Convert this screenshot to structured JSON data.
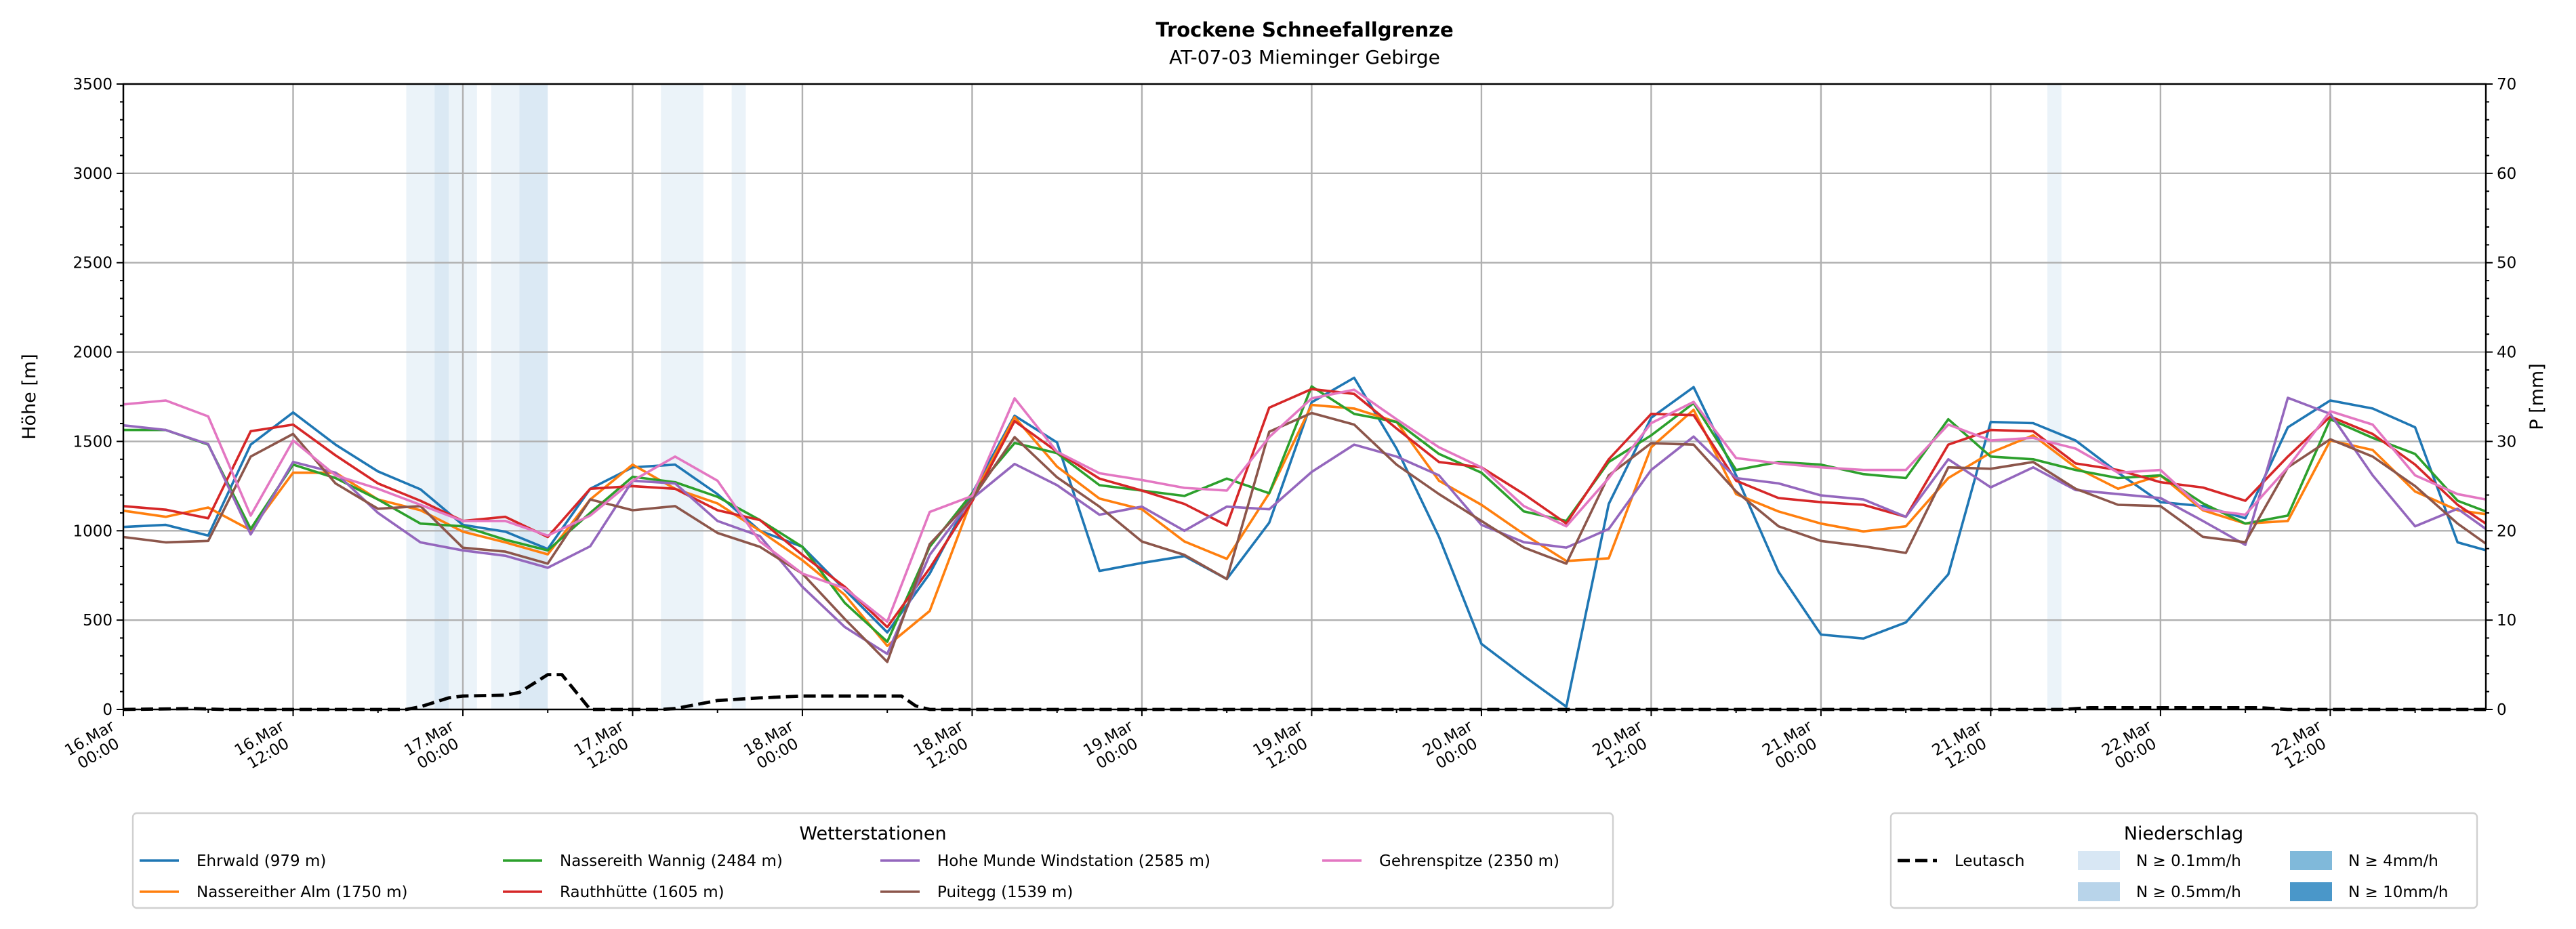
{
  "chart_data": {
    "type": "line",
    "title": "Trockene Schneefallgrenze",
    "subtitle": "AT-07-03 Mieminger Gebirge",
    "ylabel": "Höhe [m]",
    "ylabel_right": "P [mm]",
    "ylim": [
      0,
      3500
    ],
    "ylim_right": [
      0,
      70
    ],
    "y_ticks": [
      "0",
      "500",
      "1000",
      "1500",
      "2000",
      "2500",
      "3000",
      "3500"
    ],
    "y_ticks_right": [
      "0",
      "10",
      "20",
      "30",
      "40",
      "50",
      "60",
      "70"
    ],
    "grid": true,
    "x_unit": "hours since 16.Mar 00:00",
    "xlim": [
      0,
      167
    ],
    "x_tick_labels": [
      [
        "16.Mar",
        "00:00"
      ],
      [
        "16.Mar",
        "12:00"
      ],
      [
        "17.Mar",
        "00:00"
      ],
      [
        "17.Mar",
        "12:00"
      ],
      [
        "18.Mar",
        "00:00"
      ],
      [
        "18.Mar",
        "12:00"
      ],
      [
        "19.Mar",
        "00:00"
      ],
      [
        "19.Mar",
        "12:00"
      ],
      [
        "20.Mar",
        "00:00"
      ],
      [
        "20.Mar",
        "12:00"
      ],
      [
        "21.Mar",
        "00:00"
      ],
      [
        "21.Mar",
        "12:00"
      ],
      [
        "22.Mar",
        "00:00"
      ],
      [
        "22.Mar",
        "12:00"
      ]
    ],
    "x": [
      0,
      3,
      6,
      9,
      12,
      15,
      18,
      21,
      24,
      27,
      30,
      33,
      36,
      39,
      42,
      45,
      48,
      51,
      54,
      57,
      60,
      63,
      66,
      69,
      72,
      75,
      78,
      81,
      84,
      87,
      90,
      93,
      96,
      99,
      102,
      105,
      108,
      111,
      114,
      117,
      120,
      123,
      126,
      129,
      132,
      135,
      138,
      141,
      144,
      147,
      150,
      153,
      156,
      159,
      162,
      165,
      167
    ],
    "series": [
      {
        "name": "Ehrwald (979 m)",
        "color": "#1f77b4",
        "values": [
          1021,
          1033,
          973,
          1482,
          1662,
          1482,
          1332,
          1232,
          1033,
          995,
          898,
          1235,
          1355,
          1370,
          1205,
          1000,
          910,
          670,
          431,
          760,
          1210,
          1644,
          1494,
          775,
          820,
          858,
          730,
          1045,
          1719,
          1856,
          1460,
          966,
          367,
          187,
          15,
          1150,
          1632,
          1804,
          1310,
          771,
          419,
          397,
          487,
          756,
          1609,
          1602,
          1505,
          1325,
          1160,
          1138,
          1070,
          1579,
          1729,
          1684,
          1579,
          935,
          891
        ]
      },
      {
        "name": "Nassereither Alm (1750 m)",
        "color": "#ff7f0e",
        "values": [
          1112,
          1078,
          1130,
          1003,
          1325,
          1325,
          1175,
          1115,
          995,
          935,
          868,
          1175,
          1370,
          1235,
          1153,
          1000,
          835,
          641,
          356,
          551,
          1180,
          1636,
          1359,
          1180,
          1120,
          940,
          843,
          1210,
          1704,
          1684,
          1609,
          1280,
          1145,
          981,
          831,
          846,
          1467,
          1677,
          1205,
          1108,
          1040,
          996,
          1025,
          1295,
          1437,
          1534,
          1355,
          1235,
          1310,
          1115,
          1040,
          1055,
          1505,
          1452,
          1220,
          1115,
          1093
        ]
      },
      {
        "name": "Nassereith Wannig (2484 m)",
        "color": "#2ca02c",
        "values": [
          1564,
          1564,
          1482,
          1010,
          1370,
          1295,
          1175,
          1040,
          1025,
          950,
          890,
          1100,
          1302,
          1272,
          1190,
          1060,
          910,
          596,
          379,
          910,
          1210,
          1491,
          1434,
          1255,
          1225,
          1195,
          1292,
          1210,
          1808,
          1654,
          1609,
          1430,
          1325,
          1108,
          1055,
          1385,
          1534,
          1714,
          1340,
          1385,
          1370,
          1317,
          1295,
          1624,
          1415,
          1400,
          1340,
          1295,
          1310,
          1153,
          1040,
          1085,
          1624,
          1520,
          1430,
          1168,
          1108
        ]
      },
      {
        "name": "Rauthhütte (1605 m)",
        "color": "#d62728",
        "values": [
          1138,
          1118,
          1070,
          1557,
          1594,
          1422,
          1265,
          1168,
          1055,
          1078,
          965,
          1235,
          1250,
          1235,
          1115,
          1060,
          865,
          686,
          461,
          790,
          1165,
          1614,
          1442,
          1292,
          1225,
          1150,
          1030,
          1689,
          1793,
          1766,
          1572,
          1385,
          1355,
          1205,
          1040,
          1400,
          1654,
          1647,
          1280,
          1183,
          1160,
          1145,
          1078,
          1482,
          1564,
          1557,
          1377,
          1340,
          1272,
          1242,
          1168,
          1415,
          1639,
          1542,
          1370,
          1145,
          1040
        ]
      },
      {
        "name": "Hohe Munde Windstation (2585 m)",
        "color": "#9467bd",
        "values": [
          1590,
          1564,
          1485,
          980,
          1385,
          1325,
          1100,
          935,
          890,
          860,
          793,
          913,
          1280,
          1265,
          1055,
          970,
          686,
          461,
          311,
          865,
          1180,
          1374,
          1255,
          1090,
          1135,
          1000,
          1135,
          1120,
          1329,
          1482,
          1415,
          1310,
          1033,
          936,
          906,
          1010,
          1340,
          1527,
          1295,
          1265,
          1198,
          1175,
          1078,
          1400,
          1243,
          1355,
          1228,
          1205,
          1183,
          1055,
          921,
          1744,
          1654,
          1310,
          1025,
          1123,
          1010
        ]
      },
      {
        "name": "Puitegg (1539 m)",
        "color": "#8c564b",
        "values": [
          965,
          935,
          943,
          1415,
          1542,
          1265,
          1123,
          1138,
          905,
          883,
          816,
          1175,
          1115,
          1138,
          988,
          910,
          760,
          506,
          266,
          925,
          1180,
          1524,
          1299,
          1135,
          940,
          865,
          730,
          1554,
          1659,
          1594,
          1370,
          1205,
          1055,
          906,
          816,
          1310,
          1490,
          1482,
          1220,
          1025,
          943,
          913,
          876,
          1355,
          1347,
          1385,
          1235,
          1145,
          1138,
          966,
          936,
          1355,
          1512,
          1415,
          1250,
          1040,
          928
        ]
      },
      {
        "name": "Gehrenspitze (2350 m)",
        "color": "#e377c2",
        "values": [
          1707,
          1729,
          1640,
          1085,
          1505,
          1310,
          1235,
          1145,
          1055,
          1055,
          973,
          1085,
          1280,
          1415,
          1280,
          940,
          760,
          678,
          491,
          1105,
          1195,
          1741,
          1442,
          1322,
          1284,
          1240,
          1225,
          1524,
          1741,
          1789,
          1624,
          1467,
          1355,
          1138,
          1025,
          1295,
          1602,
          1721,
          1407,
          1377,
          1355,
          1340,
          1340,
          1594,
          1505,
          1520,
          1460,
          1325,
          1340,
          1120,
          1090,
          1355,
          1669,
          1594,
          1310,
          1205,
          1175
        ]
      }
    ],
    "precip_series": {
      "name": "Leutasch",
      "axis": "right",
      "color": "#000000",
      "style": "dashed",
      "points": [
        [
          0,
          0
        ],
        [
          5,
          0.1
        ],
        [
          7,
          0
        ],
        [
          20,
          0
        ],
        [
          21,
          0.3
        ],
        [
          23,
          1.3
        ],
        [
          24,
          1.5
        ],
        [
          27,
          1.6
        ],
        [
          28,
          1.9
        ],
        [
          30,
          3.9
        ],
        [
          31,
          3.9
        ],
        [
          33,
          0
        ],
        [
          38,
          0
        ],
        [
          39,
          0.1
        ],
        [
          42,
          1.0
        ],
        [
          45,
          1.3
        ],
        [
          48,
          1.5
        ],
        [
          55,
          1.5
        ],
        [
          56,
          0.4
        ],
        [
          57,
          0
        ],
        [
          137,
          0
        ],
        [
          139,
          0.2
        ],
        [
          151,
          0.2
        ],
        [
          153,
          0
        ],
        [
          167,
          0
        ]
      ]
    },
    "precip_bands": [
      {
        "from": 20,
        "to": 22,
        "level": 0
      },
      {
        "from": 22,
        "to": 23,
        "level": 1
      },
      {
        "from": 23,
        "to": 25,
        "level": 0
      },
      {
        "from": 26,
        "to": 28,
        "level": 0
      },
      {
        "from": 28,
        "to": 30,
        "level": 1
      },
      {
        "from": 38,
        "to": 41,
        "level": 0
      },
      {
        "from": 43,
        "to": 44,
        "level": 0
      },
      {
        "from": 136,
        "to": 137,
        "level": 0
      }
    ],
    "legend_stations": {
      "title": "Wetterstationen",
      "placement": "bottom-left"
    },
    "legend_precip": {
      "title": "Niederschlag",
      "placement": "bottom-right",
      "line_label": "Leutasch",
      "levels": [
        {
          "label": "N ≥ 0.1mm/h",
          "color": "#d8e7f4"
        },
        {
          "label": "N ≥ 0.5mm/h",
          "color": "#b8d4ea"
        },
        {
          "label": "N ≥ 4mm/h",
          "color": "#80b9da"
        },
        {
          "label": "N ≥ 10mm/h",
          "color": "#4a97c9"
        }
      ]
    }
  }
}
